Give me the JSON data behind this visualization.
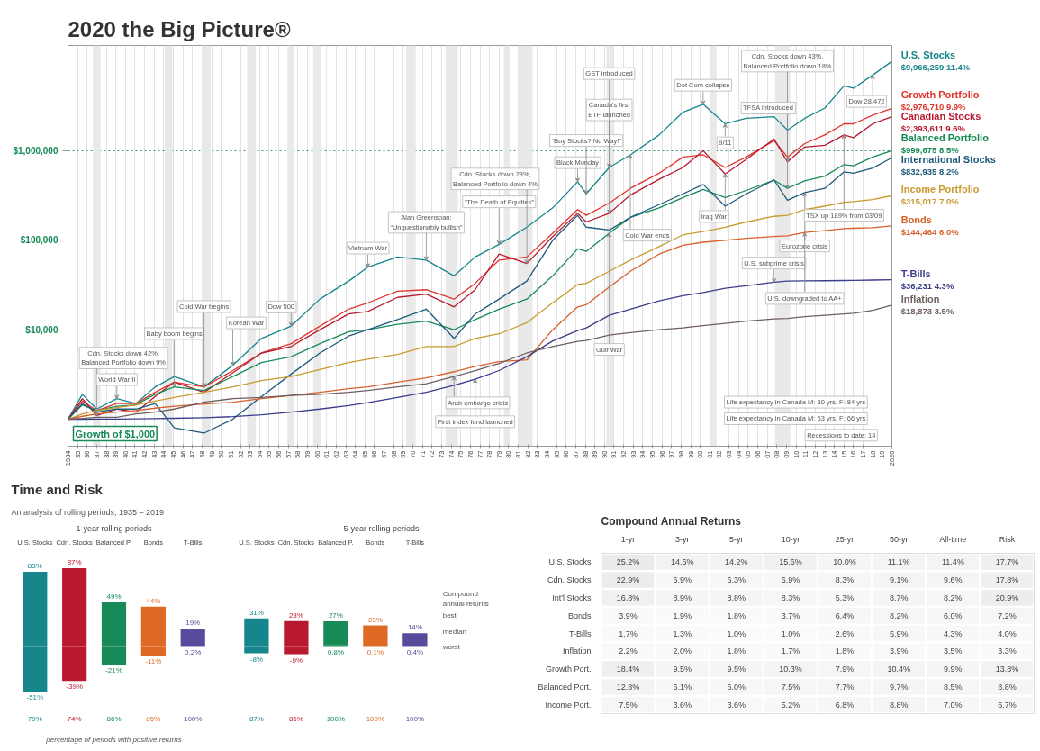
{
  "chart_data": [
    {
      "type": "line",
      "title": "2020 the Big Picture®",
      "log": true,
      "grid": true,
      "xlim": [
        1934,
        2020
      ],
      "xticks": [
        1934,
        {
          "value": 1935,
          "label": "35"
        },
        {
          "value": 1936,
          "label": "36"
        },
        {
          "value": 1937,
          "label": "37"
        },
        {
          "value": 1938,
          "label": "38"
        },
        {
          "value": 1939,
          "label": "39"
        },
        {
          "value": 1940,
          "label": "40"
        },
        {
          "value": 1941,
          "label": "41"
        },
        {
          "value": 1942,
          "label": "42"
        },
        {
          "value": 1943,
          "label": "43"
        },
        {
          "value": 1944,
          "label": "44"
        },
        {
          "value": 1945,
          "label": "45"
        },
        {
          "value": 1946,
          "label": "46"
        },
        {
          "value": 1947,
          "label": "47"
        },
        {
          "value": 1948,
          "label": "48"
        },
        {
          "value": 1949,
          "label": "49"
        },
        {
          "value": 1950,
          "label": "50"
        },
        {
          "value": 1951,
          "label": "51"
        },
        {
          "value": 1952,
          "label": "52"
        },
        {
          "value": 1953,
          "label": "53"
        },
        {
          "value": 1954,
          "label": "54"
        },
        {
          "value": 1955,
          "label": "55"
        },
        {
          "value": 1956,
          "label": "56"
        },
        {
          "value": 1957,
          "label": "57"
        },
        {
          "value": 1958,
          "label": "58"
        },
        {
          "value": 1959,
          "label": "59"
        },
        {
          "value": 1960,
          "label": "60"
        },
        {
          "value": 1961,
          "label": "61"
        },
        {
          "value": 1962,
          "label": "62"
        },
        {
          "value": 1963,
          "label": "63"
        },
        {
          "value": 1964,
          "label": "64"
        },
        {
          "value": 1965,
          "label": "65"
        },
        {
          "value": 1966,
          "label": "66"
        },
        {
          "value": 1967,
          "label": "67"
        },
        {
          "value": 1968,
          "label": "68"
        },
        {
          "value": 1969,
          "label": "69"
        },
        {
          "value": 1970,
          "label": "70"
        },
        {
          "value": 1971,
          "label": "71"
        },
        {
          "value": 1972,
          "label": "72"
        },
        {
          "value": 1973,
          "label": "73"
        },
        {
          "value": 1974,
          "label": "74"
        },
        {
          "value": 1975,
          "label": "75"
        },
        {
          "value": 1976,
          "label": "76"
        },
        {
          "value": 1977,
          "label": "77"
        },
        {
          "value": 1978,
          "label": "78"
        },
        {
          "value": 1979,
          "label": "79"
        },
        {
          "value": 1980,
          "label": "80"
        },
        {
          "value": 1981,
          "label": "81"
        },
        {
          "value": 1982,
          "label": "82"
        },
        {
          "value": 1983,
          "label": "83"
        },
        {
          "value": 1984,
          "label": "84"
        },
        {
          "value": 1985,
          "label": "85"
        },
        {
          "value": 1986,
          "label": "86"
        },
        {
          "value": 1987,
          "label": "87"
        },
        {
          "value": 1988,
          "label": "88"
        },
        {
          "value": 1989,
          "label": "89"
        },
        {
          "value": 1990,
          "label": "90"
        },
        {
          "value": 1991,
          "label": "91"
        },
        {
          "value": 1992,
          "label": "92"
        },
        {
          "value": 1993,
          "label": "93"
        },
        {
          "value": 1994,
          "label": "94"
        },
        {
          "value": 1995,
          "label": "95"
        },
        {
          "value": 1996,
          "label": "96"
        },
        {
          "value": 1997,
          "label": "97"
        },
        {
          "value": 1998,
          "label": "98"
        },
        {
          "value": 1999,
          "label": "99"
        },
        {
          "value": 2000,
          "label": "00"
        },
        {
          "value": 2001,
          "label": "01"
        },
        {
          "value": 2002,
          "label": "02"
        },
        {
          "value": 2003,
          "label": "03"
        },
        {
          "value": 2004,
          "label": "04"
        },
        {
          "value": 2005,
          "label": "05"
        },
        {
          "value": 2006,
          "label": "06"
        },
        {
          "value": 2007,
          "label": "07"
        },
        {
          "value": 2008,
          "label": "08"
        },
        {
          "value": 2009,
          "label": "09"
        },
        {
          "value": 2010,
          "label": "10"
        },
        {
          "value": 2011,
          "label": "11"
        },
        {
          "value": 2012,
          "label": "12"
        },
        {
          "value": 2013,
          "label": "13"
        },
        {
          "value": 2014,
          "label": "14"
        },
        {
          "value": 2015,
          "label": "15"
        },
        {
          "value": 2016,
          "label": "16"
        },
        {
          "value": 2017,
          "label": "17"
        },
        {
          "value": 2018,
          "label": "18"
        },
        {
          "value": 2019,
          "label": "19"
        },
        2020
      ],
      "ylim": [
        500,
        15000000
      ],
      "yticks": [
        {
          "value": 10000,
          "label": "$10,000"
        },
        {
          "value": 100000,
          "label": "$100,000"
        },
        {
          "value": 1000000,
          "label": "$1,000,000"
        }
      ],
      "x": [
        1934,
        1935.5,
        1937,
        1939.1,
        1941.1,
        1943.1,
        1945.1,
        1948.2,
        1951.2,
        1954.2,
        1957.3,
        1960.3,
        1963.3,
        1965.3,
        1968.4,
        1971.4,
        1974.3,
        1976.5,
        1979,
        1981.9,
        1984.6,
        1987.2,
        1988.1,
        1990.5,
        1992.7,
        1995.7,
        1998.2,
        2000.3,
        2002.6,
        2004.8,
        2007.7,
        2009.1,
        2010.9,
        2013,
        2015,
        2016,
        2018,
        2020
      ],
      "series": [
        {
          "name": "U.S. Stocks",
          "color": "#17868c",
          "values": [
            1000,
            1900,
            1300,
            1700,
            1500,
            2300,
            3000,
            2300,
            4000,
            8000,
            11000,
            22000,
            35000,
            50000,
            65000,
            60000,
            40000,
            65000,
            90000,
            140000,
            230000,
            450000,
            330000,
            650000,
            900000,
            1500000,
            2700000,
            3300000,
            2000000,
            2300000,
            2400000,
            1700000,
            2300000,
            3000000,
            5300000,
            5000000,
            7000000,
            9966259
          ],
          "value_labels": [
            null,
            null,
            null,
            null,
            null,
            null,
            null,
            null,
            null,
            null,
            null,
            null,
            null,
            null,
            null,
            null,
            null,
            null,
            null,
            null,
            null,
            null,
            null,
            null,
            null,
            null,
            null,
            null,
            null,
            null,
            null,
            null,
            null,
            null,
            null,
            null,
            null,
            "$9,966,259 11.4%"
          ]
        },
        {
          "name": "Growth Portfolio",
          "color": "#e0342c",
          "values": [
            1000,
            1600,
            1250,
            1500,
            1500,
            2000,
            2600,
            2300,
            3500,
            5500,
            7000,
            11000,
            17000,
            20000,
            27000,
            28000,
            22000,
            33000,
            60000,
            65000,
            120000,
            220000,
            190000,
            260000,
            380000,
            560000,
            850000,
            900000,
            650000,
            850000,
            1300000,
            850000,
            1200000,
            1500000,
            2000000,
            2000000,
            2500000,
            2976710
          ],
          "value_labels": [
            null,
            null,
            null,
            null,
            null,
            null,
            null,
            null,
            null,
            null,
            null,
            null,
            null,
            null,
            null,
            null,
            null,
            null,
            null,
            null,
            null,
            null,
            null,
            null,
            null,
            null,
            null,
            null,
            null,
            null,
            null,
            null,
            null,
            null,
            null,
            null,
            null,
            "$2,976,710 9.9%"
          ]
        },
        {
          "name": "Canadian Stocks",
          "color": "#b8192f",
          "values": [
            1000,
            1700,
            1100,
            1300,
            1200,
            1800,
            2600,
            2000,
            3300,
            5500,
            6500,
            10000,
            15000,
            16000,
            23000,
            25000,
            18000,
            28000,
            70000,
            55000,
            110000,
            200000,
            160000,
            200000,
            320000,
            480000,
            650000,
            1000000,
            550000,
            800000,
            1350000,
            750000,
            1100000,
            1150000,
            1500000,
            1400000,
            2000000,
            2393611
          ],
          "value_labels": [
            null,
            null,
            null,
            null,
            null,
            null,
            null,
            null,
            null,
            null,
            null,
            null,
            null,
            null,
            null,
            null,
            null,
            null,
            null,
            null,
            null,
            null,
            null,
            null,
            null,
            null,
            null,
            null,
            null,
            null,
            null,
            null,
            null,
            null,
            null,
            null,
            null,
            "$2,393,611 9.6%"
          ]
        },
        {
          "name": "Balanced Portfolio",
          "color": "#178a57",
          "values": [
            1000,
            1450,
            1250,
            1400,
            1450,
            1900,
            2300,
            2100,
            3000,
            4300,
            5000,
            7000,
            9500,
            10000,
            11500,
            12500,
            10000,
            13000,
            17000,
            22000,
            40000,
            80000,
            75000,
            120000,
            180000,
            230000,
            300000,
            370000,
            300000,
            360000,
            470000,
            380000,
            460000,
            520000,
            700000,
            680000,
            850000,
            999675
          ],
          "value_labels": [
            null,
            null,
            null,
            null,
            null,
            null,
            null,
            null,
            null,
            null,
            null,
            null,
            null,
            null,
            null,
            null,
            null,
            null,
            null,
            null,
            null,
            null,
            null,
            null,
            null,
            null,
            null,
            null,
            null,
            null,
            null,
            null,
            null,
            null,
            null,
            null,
            null,
            "$999,675 8.5%"
          ]
        },
        {
          "name": "International Stocks",
          "color": "#1d5a7c",
          "values": [
            1000,
            1500,
            1200,
            1300,
            1300,
            1500,
            800,
            700,
            1000,
            1800,
            3200,
            5500,
            8500,
            10000,
            13000,
            17000,
            8000,
            15000,
            22000,
            35000,
            100000,
            190000,
            140000,
            130000,
            180000,
            250000,
            330000,
            420000,
            240000,
            330000,
            470000,
            280000,
            340000,
            380000,
            580000,
            560000,
            640000,
            832935
          ],
          "value_labels": [
            null,
            null,
            null,
            null,
            null,
            null,
            null,
            null,
            null,
            null,
            null,
            null,
            null,
            null,
            null,
            null,
            null,
            null,
            null,
            null,
            null,
            null,
            null,
            null,
            null,
            null,
            null,
            null,
            null,
            null,
            null,
            null,
            null,
            null,
            null,
            null,
            null,
            "$832,935 8.2%"
          ]
        },
        {
          "name": "Income Portfolio",
          "color": "#c99a2e",
          "values": [
            1000,
            1150,
            1250,
            1350,
            1450,
            1600,
            1750,
            2000,
            2300,
            2700,
            3000,
            3600,
            4300,
            4700,
            5300,
            6500,
            6500,
            8000,
            9000,
            12000,
            20000,
            32000,
            33000,
            45000,
            60000,
            85000,
            115000,
            125000,
            140000,
            160000,
            185000,
            190000,
            220000,
            240000,
            265000,
            270000,
            285000,
            315017
          ],
          "value_labels": [
            null,
            null,
            null,
            null,
            null,
            null,
            null,
            null,
            null,
            null,
            null,
            null,
            null,
            null,
            null,
            null,
            null,
            null,
            null,
            null,
            null,
            null,
            null,
            null,
            null,
            null,
            null,
            null,
            null,
            null,
            null,
            null,
            null,
            null,
            null,
            null,
            null,
            "$315,017 7.0%"
          ]
        },
        {
          "name": "Bonds",
          "color": "#d9602a",
          "values": [
            1000,
            1080,
            1150,
            1200,
            1250,
            1330,
            1400,
            1480,
            1550,
            1700,
            1850,
            2000,
            2200,
            2300,
            2600,
            2900,
            3400,
            3900,
            4400,
            4600,
            10000,
            18000,
            19000,
            30000,
            45000,
            70000,
            88000,
            95000,
            100000,
            105000,
            110000,
            112000,
            122000,
            128000,
            135000,
            136000,
            138000,
            144464
          ],
          "value_labels": [
            null,
            null,
            null,
            null,
            null,
            null,
            null,
            null,
            null,
            null,
            null,
            null,
            null,
            null,
            null,
            null,
            null,
            null,
            null,
            null,
            null,
            null,
            null,
            null,
            null,
            null,
            null,
            null,
            null,
            null,
            null,
            null,
            null,
            null,
            null,
            null,
            null,
            "$144,464 6.0%"
          ]
        },
        {
          "name": "T-Bills",
          "color": "#3b3d8c",
          "values": [
            1000,
            1002,
            1004,
            1006,
            1010,
            1015,
            1025,
            1040,
            1070,
            1120,
            1200,
            1300,
            1420,
            1530,
            1750,
            2000,
            2400,
            2800,
            3500,
            5000,
            7500,
            9800,
            10500,
            14500,
            17000,
            21000,
            24000,
            26000,
            29000,
            31000,
            34000,
            35000,
            35200,
            35300,
            35500,
            35600,
            35900,
            36231
          ],
          "value_labels": [
            null,
            null,
            null,
            null,
            null,
            null,
            null,
            null,
            null,
            null,
            null,
            null,
            null,
            null,
            null,
            null,
            null,
            null,
            null,
            null,
            null,
            null,
            null,
            null,
            null,
            null,
            null,
            null,
            null,
            null,
            null,
            null,
            null,
            null,
            null,
            null,
            null,
            "$36,231 4.3%"
          ]
        },
        {
          "name": "Inflation",
          "color": "#6f5f5f",
          "values": [
            1000,
            1020,
            1050,
            1050,
            1150,
            1200,
            1300,
            1550,
            1700,
            1750,
            1850,
            1900,
            2000,
            2100,
            2300,
            2500,
            3000,
            3500,
            4200,
            5500,
            6500,
            7400,
            7600,
            8700,
            9300,
            10000,
            10500,
            11100,
            11800,
            12500,
            13200,
            13400,
            14000,
            14500,
            15000,
            15300,
            16500,
            18873
          ],
          "value_labels": [
            null,
            null,
            null,
            null,
            null,
            null,
            null,
            null,
            null,
            null,
            null,
            null,
            null,
            null,
            null,
            null,
            null,
            null,
            null,
            null,
            null,
            null,
            null,
            null,
            null,
            null,
            null,
            null,
            null,
            null,
            null,
            null,
            null,
            null,
            null,
            null,
            null,
            "$18,873 3.5%"
          ]
        }
      ],
      "bands": [
        {
          "axis": "x",
          "from": 1936.6,
          "to": 1937.4,
          "color": "#e9e9e9"
        },
        {
          "axis": "x",
          "from": 1944.1,
          "to": 1944.9,
          "color": "#e9e9e9"
        },
        {
          "axis": "x",
          "from": 1948.0,
          "to": 1948.9,
          "color": "#e9e9e9"
        },
        {
          "axis": "x",
          "from": 1952.7,
          "to": 1953.6,
          "color": "#e9e9e9"
        },
        {
          "axis": "x",
          "from": 1956.9,
          "to": 1957.6,
          "color": "#e9e9e9"
        },
        {
          "axis": "x",
          "from": 1959.6,
          "to": 1960.4,
          "color": "#e9e9e9"
        },
        {
          "axis": "x",
          "from": 1969.3,
          "to": 1970.3,
          "color": "#e9e9e9"
        },
        {
          "axis": "x",
          "from": 1973.4,
          "to": 1974.7,
          "color": "#e9e9e9"
        },
        {
          "axis": "x",
          "from": 1979.5,
          "to": 1980.1,
          "color": "#e9e9e9"
        },
        {
          "axis": "x",
          "from": 1981.0,
          "to": 1982.5,
          "color": "#e9e9e9"
        },
        {
          "axis": "x",
          "from": 1990.2,
          "to": 1990.9,
          "color": "#e9e9e9"
        },
        {
          "axis": "x",
          "from": 2001.0,
          "to": 2001.7,
          "color": "#e9e9e9"
        },
        {
          "axis": "x",
          "from": 2007.8,
          "to": 2009.4,
          "color": "#e9e9e9"
        }
      ],
      "annotations": [
        {
          "text": "Growth of $1,000",
          "x": 1934,
          "y": 1000
        },
        {
          "text": "Cdn. Stocks down 42%, Balanced Portfolio down 9%",
          "x": 1937,
          "y": 1100
        },
        {
          "text": "World War II",
          "x": 1939.1,
          "y": 1700
        },
        {
          "text": "Baby boom begins",
          "x": 1945.1,
          "y": 2300
        },
        {
          "text": "Cold War begins",
          "x": 1948.2,
          "y": 2300
        },
        {
          "text": "Korean War",
          "x": 1951.2,
          "y": 4000
        },
        {
          "text": "Dow 500",
          "x": 1957.3,
          "y": 11000
        },
        {
          "text": "Vietnam War",
          "x": 1965.3,
          "y": 50000
        },
        {
          "text": "Alan Greenspan: “Unquestionably bullish”",
          "x": 1971.4,
          "y": 60000
        },
        {
          "text": "Arab embargo crisis",
          "x": 1974.3,
          "y": 3000
        },
        {
          "text": "First index fund launched",
          "x": 1976.5,
          "y": 2800
        },
        {
          "text": "“The Death of Equities”",
          "x": 1979,
          "y": 90000
        },
        {
          "text": "Cdn. Stocks down 28%, Balanced Portfolio down 4%",
          "x": 1981.9,
          "y": 55000
        },
        {
          "text": "Black Monday",
          "x": 1987.2,
          "y": 450000
        },
        {
          "text": "“Buy Stocks? No Way!”",
          "x": 1988.1,
          "y": 330000
        },
        {
          "text": "Canada's first ETF launched",
          "x": 1990.5,
          "y": 650000
        },
        {
          "text": "GST introduced",
          "x": 1990.5,
          "y": 200000
        },
        {
          "text": "Gulf War",
          "x": 1990.5,
          "y": 120000
        },
        {
          "text": "Cold War ends",
          "x": 1992.7,
          "y": 900000
        },
        {
          "text": "Dot Com collapse",
          "x": 2000.3,
          "y": 3300000
        },
        {
          "text": "9/11",
          "x": 2002.6,
          "y": 2000000
        },
        {
          "text": "Iraq War",
          "x": 2002.6,
          "y": 550000
        },
        {
          "text": "U.S. subprime crisis",
          "x": 2007.7,
          "y": 34000
        },
        {
          "text": "Cdn. Stocks down 43%, Balanced Portfolio down 18%",
          "x": 2009.1,
          "y": 750000
        },
        {
          "text": "TFSA introduced",
          "x": 2009.1,
          "y": 380000
        },
        {
          "text": "Eurozone crisis",
          "x": 2010.9,
          "y": 340000
        },
        {
          "text": "U.S. downgraded to AA+",
          "x": 2010.9,
          "y": 122000
        },
        {
          "text": "TSX up 189% from 03/09",
          "x": 2015,
          "y": 1500000
        },
        {
          "text": "Dow 28,472",
          "x": 2018,
          "y": 7000000
        },
        "Recessions to date: 14",
        "Life expectancy in Canada M: 63 yrs, F: 66 yrs",
        "Life expectancy in Canada M: 80 yrs, F: 84 yrs"
      ]
    },
    {
      "type": "bar",
      "stacked": true,
      "title": "Time and Risk",
      "subtitle": "An analysis of rolling periods, 1935 – 2019",
      "xlabel": "1-year rolling periods",
      "categories": [
        "U.S. Stocks",
        "Cdn. Stocks",
        "Balanced P.",
        "Bonds",
        "T-Bills"
      ],
      "series": [
        {
          "colors": [
            "#17868c",
            "#b8192f",
            "#178a57",
            "#e06a25",
            "#5a4a9c"
          ],
          "values": [
            -51,
            -39,
            -21,
            -11,
            0.2
          ],
          "value_labels": [
            "-51%",
            "-39%",
            "-21%",
            "-11%",
            "0.2%"
          ]
        },
        {
          "colors": [
            "#17868c",
            "#b8192f",
            "#178a57",
            "#e06a25",
            "#5a4a9c"
          ],
          "values": [
            83,
            87,
            49,
            44,
            19
          ],
          "value_labels": [
            "83%",
            "87%",
            "49%",
            "44%",
            "19%"
          ]
        }
      ],
      "annotations": [
        "79%",
        "74%",
        "86%",
        "85%",
        "100%",
        "percentage of periods with positive returns"
      ]
    },
    {
      "type": "bar",
      "stacked": true,
      "xlabel": "5-year rolling periods",
      "categories": [
        "U.S. Stocks",
        "Cdn. Stocks",
        "Balanced P.",
        "Bonds",
        "T-Bills"
      ],
      "series": [
        {
          "colors": [
            "#17868c",
            "#b8192f",
            "#178a57",
            "#e06a25",
            "#5a4a9c"
          ],
          "values": [
            -8,
            -9,
            0.8,
            0.1,
            0.4
          ],
          "value_labels": [
            "-8%",
            "-9%",
            "0.8%",
            "0.1%",
            "0.4%"
          ]
        },
        {
          "colors": [
            "#17868c",
            "#b8192f",
            "#178a57",
            "#e06a25",
            "#5a4a9c"
          ],
          "values": [
            31,
            28,
            27,
            23,
            14
          ],
          "value_labels": [
            "31%",
            "28%",
            "27%",
            "23%",
            "14%"
          ]
        }
      ],
      "annotations": [
        "87%",
        "86%",
        "100%",
        "100%",
        "100%",
        "Compound annual returns",
        "best",
        "median",
        "worst"
      ]
    },
    {
      "type": "heatmap",
      "title": "Compound Annual Returns",
      "categories": [
        "1-yr",
        "3-yr",
        "5-yr",
        "10-yr",
        "25-yr",
        "50-yr",
        "All-time",
        "Risk"
      ],
      "y_categories": [
        "U.S. Stocks",
        "Cdn. Stocks",
        "Int'l Stocks",
        "Bonds",
        "T-Bills",
        "Inflation",
        "Growth Port.",
        "Balanced Port.",
        "Income Port."
      ],
      "cells": [
        [
          25.2,
          14.6,
          14.2,
          15.6,
          10.0,
          11.1,
          11.4,
          17.7
        ],
        [
          22.9,
          6.9,
          6.3,
          6.9,
          8.3,
          9.1,
          9.6,
          17.8
        ],
        [
          16.8,
          8.9,
          8.8,
          8.3,
          5.3,
          8.7,
          8.2,
          20.9
        ],
        [
          3.9,
          1.9,
          1.8,
          3.7,
          6.4,
          8.2,
          6.0,
          7.2
        ],
        [
          1.7,
          1.3,
          1.0,
          1.0,
          2.6,
          5.9,
          4.3,
          4.0
        ],
        [
          2.2,
          2.0,
          1.8,
          1.7,
          1.8,
          3.9,
          3.5,
          3.3
        ],
        [
          18.4,
          9.5,
          9.5,
          10.3,
          7.9,
          10.4,
          9.9,
          13.8
        ],
        [
          12.8,
          6.1,
          6.0,
          7.5,
          7.7,
          9.7,
          8.5,
          8.8
        ],
        [
          7.5,
          3.6,
          3.6,
          5.2,
          6.8,
          8.8,
          7.0,
          6.7
        ]
      ],
      "cell_labels": [
        [
          "25.2%",
          "14.6%",
          "14.2%",
          "15.6%",
          "10.0%",
          "11.1%",
          "11.4%",
          "17.7%"
        ],
        [
          "22.9%",
          "6.9%",
          "6.3%",
          "6.9%",
          "8.3%",
          "9.1%",
          "9.6%",
          "17.8%"
        ],
        [
          "16.8%",
          "8.9%",
          "8.8%",
          "8.3%",
          "5.3%",
          "8.7%",
          "8.2%",
          "20.9%"
        ],
        [
          "3.9%",
          "1.9%",
          "1.8%",
          "3.7%",
          "6.4%",
          "8.2%",
          "6.0%",
          "7.2%"
        ],
        [
          "1.7%",
          "1.3%",
          "1.0%",
          "1.0%",
          "2.6%",
          "5.9%",
          "4.3%",
          "4.0%"
        ],
        [
          "2.2%",
          "2.0%",
          "1.8%",
          "1.7%",
          "1.8%",
          "3.9%",
          "3.5%",
          "3.3%"
        ],
        [
          "18.4%",
          "9.5%",
          "9.5%",
          "10.3%",
          "7.9%",
          "10.4%",
          "9.9%",
          "13.8%"
        ],
        [
          "12.8%",
          "6.1%",
          "6.0%",
          "7.5%",
          "7.7%",
          "9.7%",
          "8.5%",
          "8.8%"
        ],
        [
          "7.5%",
          "3.6%",
          "3.6%",
          "5.2%",
          "6.8%",
          "8.8%",
          "7.0%",
          "6.7%"
        ]
      ]
    }
  ]
}
